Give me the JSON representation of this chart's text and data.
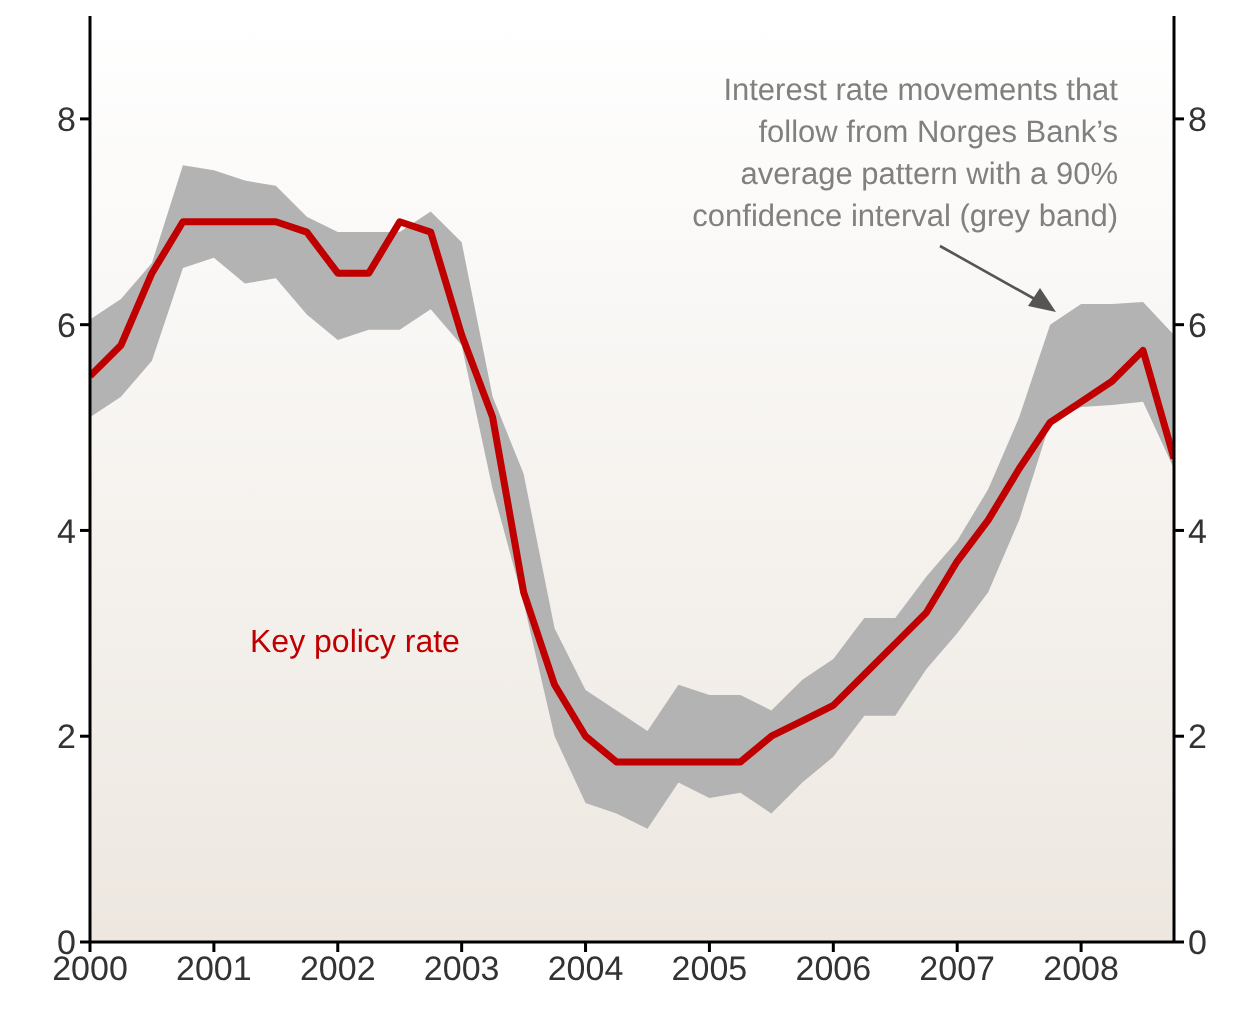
{
  "chart_data": {
    "type": "line",
    "x": [
      2000,
      2000.25,
      2000.5,
      2000.75,
      2001,
      2001.25,
      2001.5,
      2001.75,
      2002,
      2002.25,
      2002.5,
      2002.75,
      2003,
      2003.25,
      2003.5,
      2003.75,
      2004,
      2004.25,
      2004.5,
      2004.75,
      2005,
      2005.25,
      2005.5,
      2005.75,
      2006,
      2006.25,
      2006.5,
      2006.75,
      2007,
      2007.25,
      2007.5,
      2007.75,
      2008,
      2008.25,
      2008.5,
      2008.75
    ],
    "series": [
      {
        "name": "Key policy rate",
        "color": "#c00000",
        "values": [
          5.5,
          5.8,
          6.5,
          7.0,
          7.0,
          7.0,
          7.0,
          6.9,
          6.5,
          6.5,
          7.0,
          6.9,
          5.9,
          5.1,
          3.4,
          2.5,
          2.0,
          1.75,
          1.75,
          1.75,
          1.75,
          1.75,
          2.0,
          2.15,
          2.3,
          2.6,
          2.9,
          3.2,
          3.7,
          4.1,
          4.6,
          5.05,
          5.25,
          5.45,
          5.75,
          4.7
        ],
        "lower": [
          5.1,
          5.3,
          5.65,
          6.55,
          6.65,
          6.4,
          6.45,
          6.1,
          5.85,
          5.95,
          5.95,
          6.15,
          5.8,
          4.4,
          3.3,
          2.0,
          1.35,
          1.25,
          1.1,
          1.55,
          1.4,
          1.45,
          1.25,
          1.55,
          1.8,
          2.2,
          2.2,
          2.65,
          3.0,
          3.4,
          4.1,
          5.05,
          5.2,
          5.22,
          5.25,
          4.6
        ],
        "upper": [
          6.05,
          6.25,
          6.6,
          7.55,
          7.5,
          7.4,
          7.35,
          7.05,
          6.9,
          6.9,
          6.9,
          7.1,
          6.8,
          5.3,
          4.55,
          3.05,
          2.45,
          2.25,
          2.05,
          2.5,
          2.4,
          2.4,
          2.25,
          2.55,
          2.75,
          3.15,
          3.15,
          3.55,
          3.9,
          4.4,
          5.1,
          6.0,
          6.2,
          6.2,
          6.22,
          5.9
        ]
      }
    ],
    "xlim": [
      2000,
      2008.75
    ],
    "xticks": [
      2000,
      2001,
      2002,
      2003,
      2004,
      2005,
      2006,
      2007,
      2008
    ],
    "ylim": [
      0,
      9
    ],
    "yticks": [
      0,
      2,
      4,
      6,
      8
    ],
    "y2lim": [
      0,
      9
    ],
    "y2ticks": [
      0,
      2,
      4,
      6,
      8
    ],
    "annotations": [
      {
        "text": "Interest rate movements that\nfollow from Norges Bank’s\naverage pattern with a 90%\nconfidence interval (grey band)",
        "x": 2007.8,
        "y": 6.1
      }
    ],
    "marker": "none",
    "line_style": "solid"
  }
}
